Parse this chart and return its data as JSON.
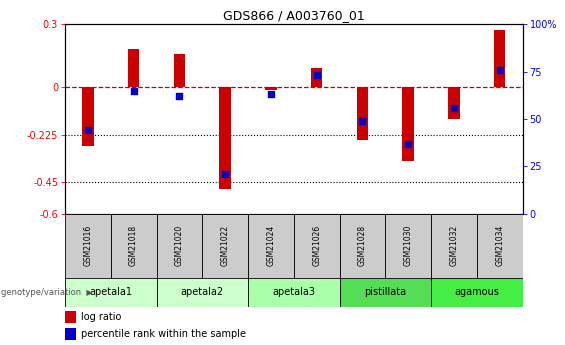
{
  "title": "GDS866 / A003760_01",
  "samples": [
    "GSM21016",
    "GSM21018",
    "GSM21020",
    "GSM21022",
    "GSM21024",
    "GSM21026",
    "GSM21028",
    "GSM21030",
    "GSM21032",
    "GSM21034"
  ],
  "log_ratio": [
    -0.28,
    0.18,
    0.16,
    -0.48,
    -0.01,
    0.09,
    -0.25,
    -0.35,
    -0.15,
    0.27
  ],
  "percentile_rank": [
    44,
    65,
    62,
    21,
    63,
    73,
    49,
    37,
    56,
    76
  ],
  "ylim_left": [
    -0.6,
    0.3
  ],
  "ylim_right": [
    0,
    100
  ],
  "yticks_left": [
    -0.6,
    -0.45,
    -0.225,
    0,
    0.3
  ],
  "yticks_right": [
    0,
    25,
    50,
    75,
    100
  ],
  "hlines": [
    -0.225,
    -0.45
  ],
  "groups": [
    {
      "label": "apetala1",
      "cols": [
        0,
        1
      ],
      "color": "#ccffcc"
    },
    {
      "label": "apetala2",
      "cols": [
        2,
        3
      ],
      "color": "#ccffcc"
    },
    {
      "label": "apetala3",
      "cols": [
        4,
        5
      ],
      "color": "#aaffaa"
    },
    {
      "label": "pistillata",
      "cols": [
        6,
        7
      ],
      "color": "#55dd55"
    },
    {
      "label": "agamous",
      "cols": [
        8,
        9
      ],
      "color": "#44ee44"
    }
  ],
  "bar_color": "#cc0000",
  "point_color": "#0000cc",
  "dashed_line_color": "#cc0000",
  "bg_color": "#ffffff",
  "sample_box_color": "#cccccc",
  "legend_labels": [
    "log ratio",
    "percentile rank within the sample"
  ],
  "genotype_label": "genotype/variation"
}
